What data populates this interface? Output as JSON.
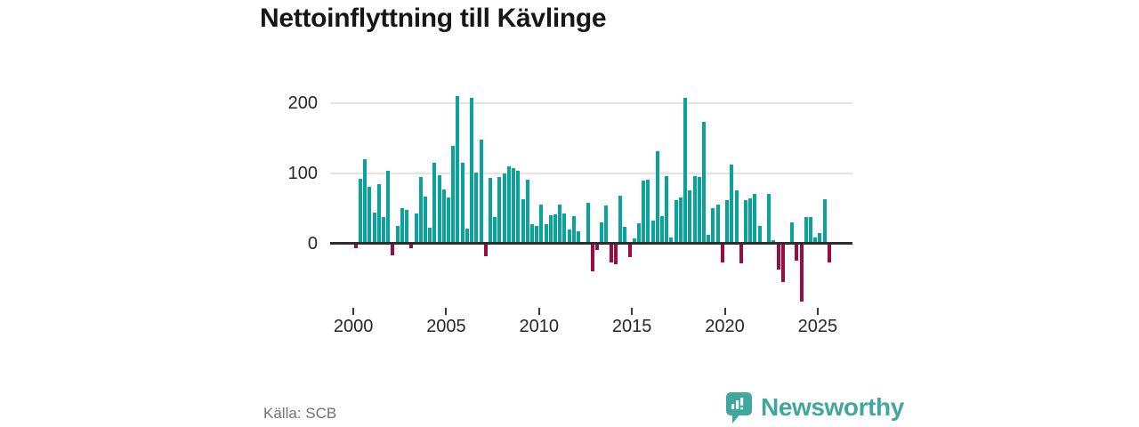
{
  "title": "Nettoinflyttning till Kävlinge",
  "source": "Källa: SCB",
  "brand": {
    "name": "Newsworthy",
    "color": "#3fa79e",
    "icon": "newsworthy-chart-bubble-icon"
  },
  "chart_data": {
    "type": "bar",
    "title": "Nettoinflyttning till Kävlinge",
    "frequency": "quarterly",
    "start_period": "2000Q1",
    "end_period": "2025Q3",
    "values": [
      -5,
      92,
      120,
      81,
      44,
      84,
      37,
      103,
      -15,
      25,
      50,
      48,
      -5,
      42,
      95,
      67,
      22,
      115,
      97,
      77,
      66,
      139,
      210,
      115,
      21,
      207,
      101,
      148,
      -17,
      93,
      38,
      95,
      100,
      110,
      107,
      104,
      63,
      91,
      27,
      25,
      55,
      27,
      40,
      41,
      55,
      42,
      20,
      39,
      17,
      0,
      58,
      -38,
      -8,
      30,
      54,
      -25,
      -28,
      68,
      24,
      -18,
      7,
      28,
      89,
      91,
      32,
      131,
      39,
      96,
      8,
      61,
      66,
      208,
      76,
      96,
      95,
      173,
      12,
      50,
      55,
      -25,
      62,
      112,
      75,
      -27,
      62,
      64,
      70,
      25,
      2,
      70,
      5,
      -36,
      -53,
      0,
      30,
      -23,
      -81,
      38,
      38,
      8,
      15,
      63,
      -26
    ],
    "x_tick_years": [
      2000,
      2005,
      2010,
      2015,
      2020,
      2025
    ],
    "x_tick_labels": [
      "2000",
      "2005",
      "2010",
      "2015",
      "2020",
      "2025"
    ],
    "y_ticks": [
      0,
      100,
      200
    ],
    "y_tick_labels": [
      "0",
      "100",
      "200"
    ],
    "ylim": [
      -90,
      225
    ],
    "grid": "horizontal",
    "legend": "none",
    "positive_color": "#09a39c",
    "negative_color": "#9b0c47",
    "axis_color": "#2e2e2e",
    "grid_color": "#e3e3e3"
  }
}
